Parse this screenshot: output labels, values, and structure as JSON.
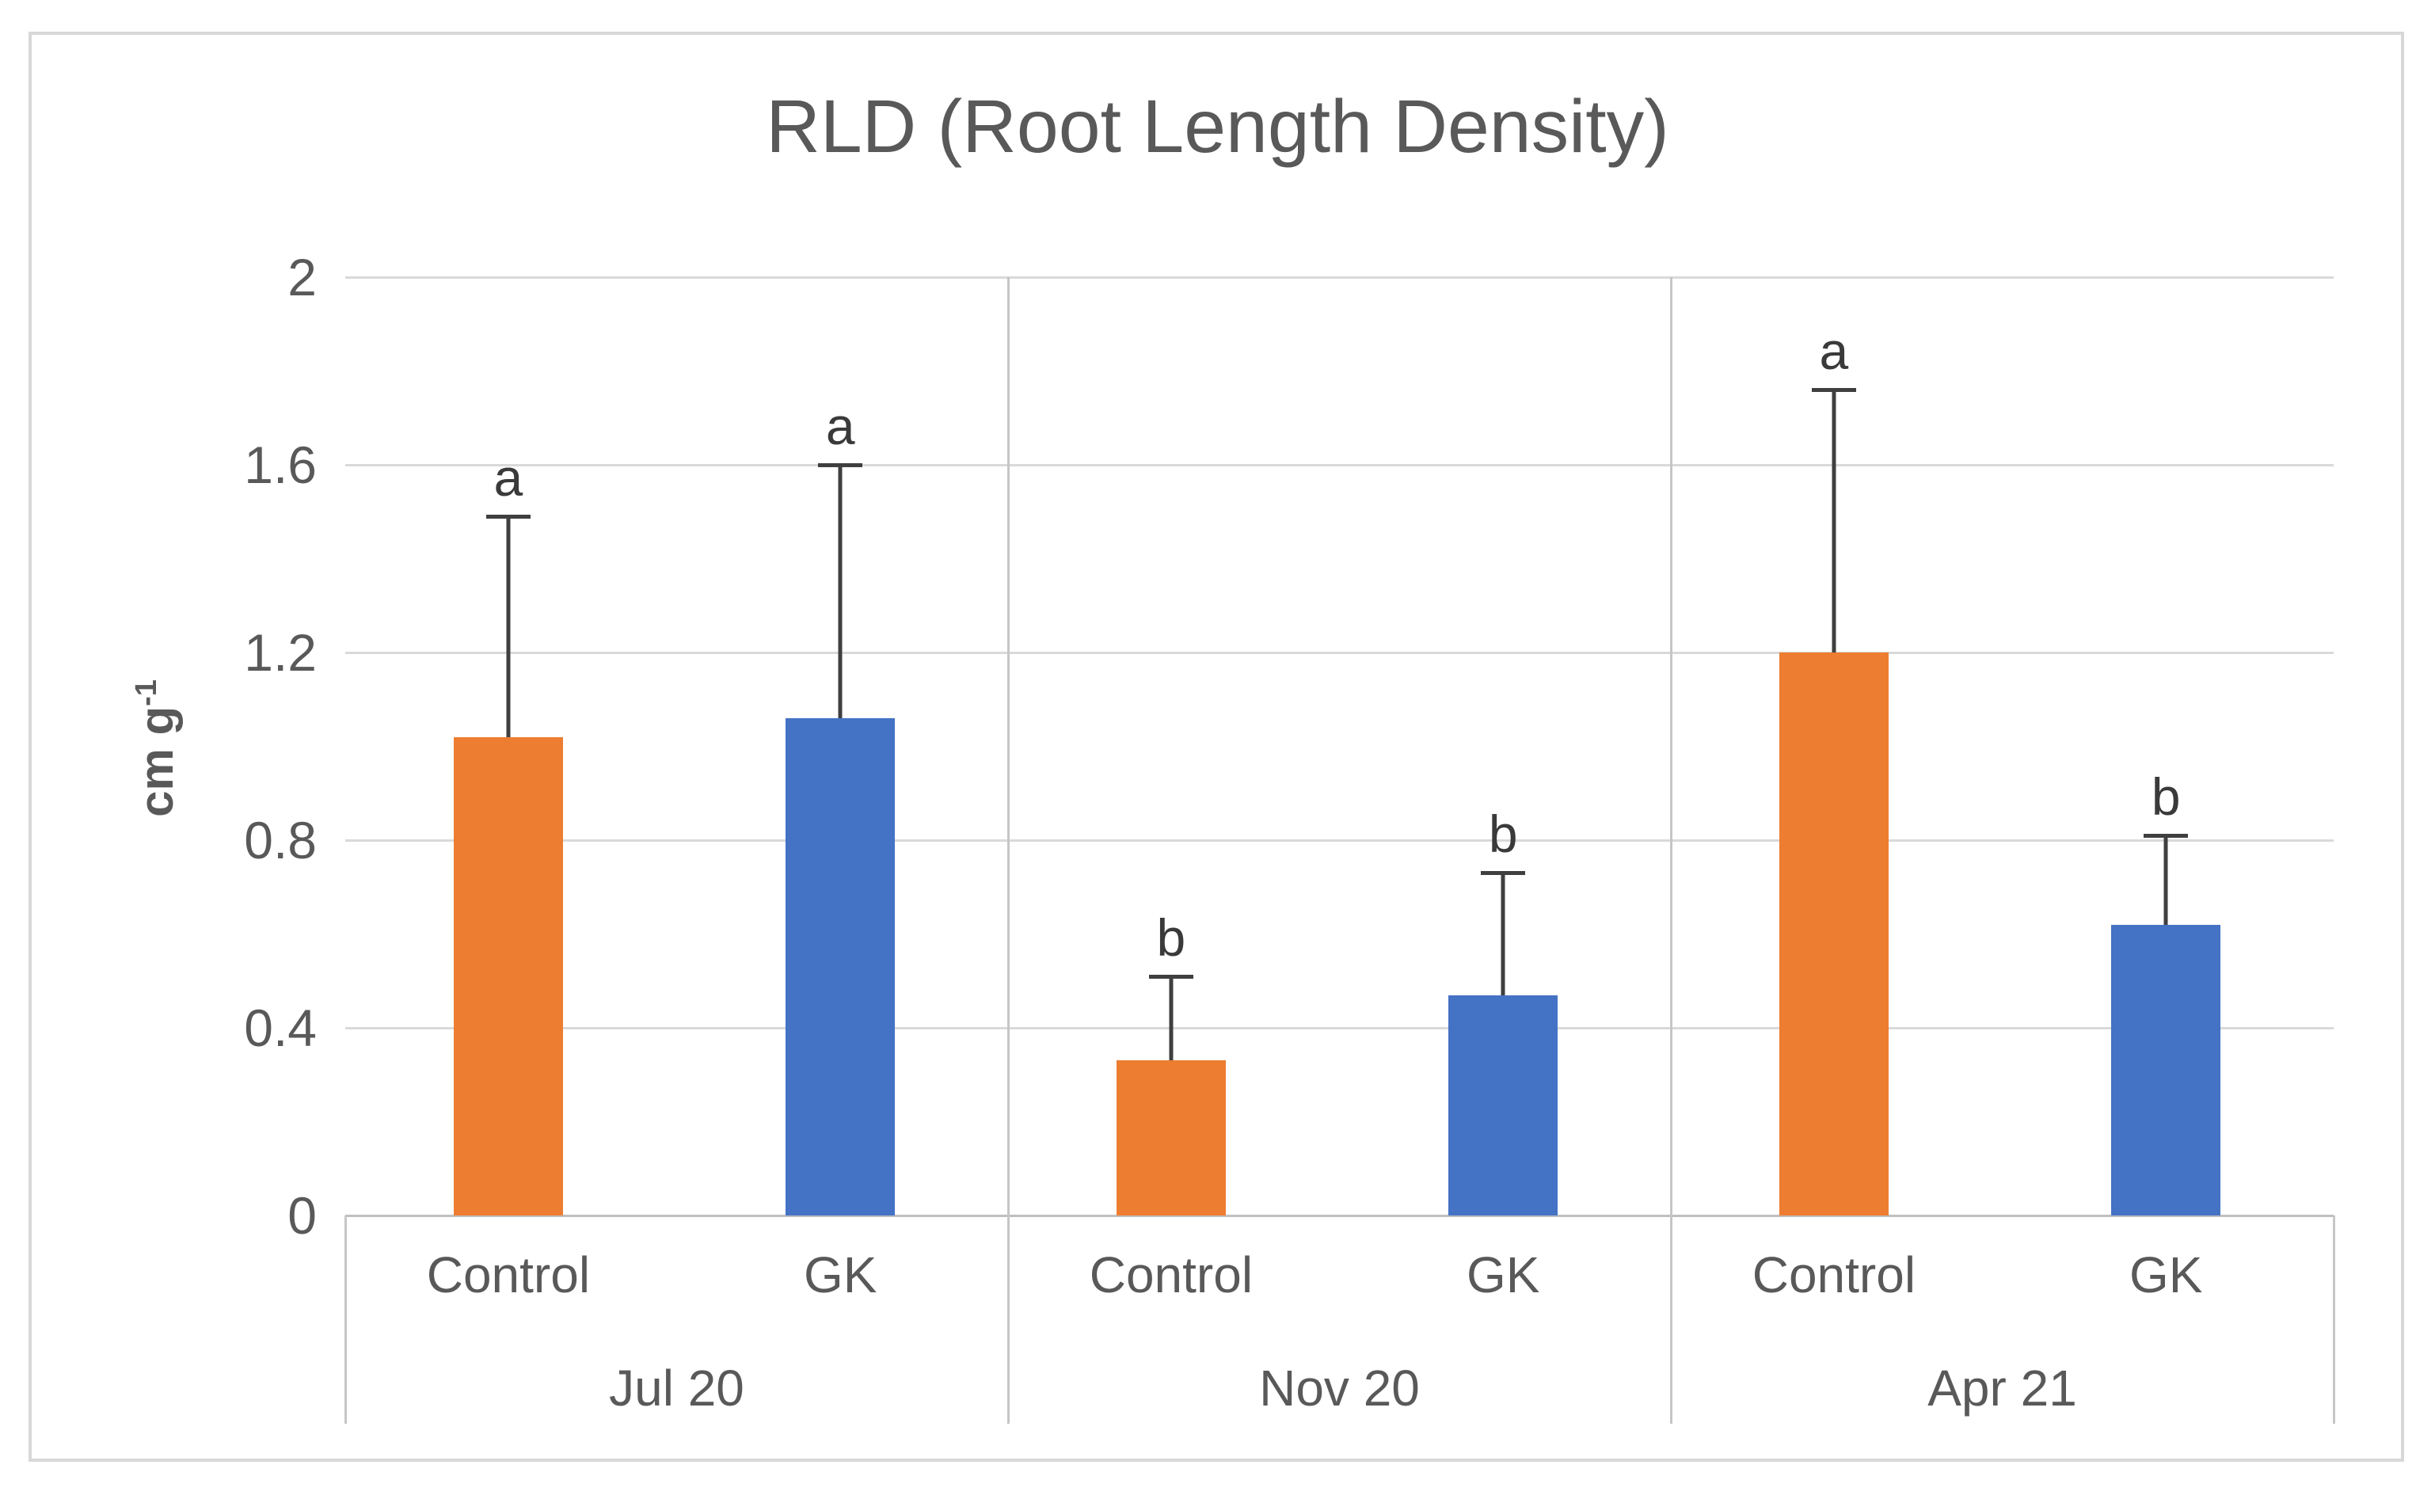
{
  "chart_data": {
    "type": "bar",
    "title": "RLD (Root Length Density)",
    "y_axis": {
      "title_base": "cm g",
      "title_sup": "-1",
      "ticks": [
        "2",
        "1.6",
        "1.2",
        "0.8",
        "0.4",
        "0"
      ],
      "tick_values": [
        2,
        1.6,
        1.2,
        0.8,
        0.4,
        0
      ],
      "range": [
        0,
        2
      ]
    },
    "categories": [
      "Jul 20",
      "Nov 20",
      "Apr 21"
    ],
    "sub_categories": [
      "Control",
      "GK"
    ],
    "series": [
      {
        "name": "Control",
        "color": "#ED7D31",
        "values": [
          1.02,
          0.33,
          1.2
        ],
        "upper_errors": [
          0.47,
          0.18,
          0.56
        ],
        "letters": [
          "a",
          "b",
          "a"
        ]
      },
      {
        "name": "GK",
        "color": "#4472C4",
        "values": [
          1.06,
          0.47,
          0.62
        ],
        "upper_errors": [
          0.54,
          0.26,
          0.19
        ],
        "letters": [
          "a",
          "b",
          "b"
        ]
      }
    ],
    "grid": "horizontal-only",
    "legend": "none",
    "error_bar_color": "#3f3f3f",
    "text_color": "#595959"
  }
}
